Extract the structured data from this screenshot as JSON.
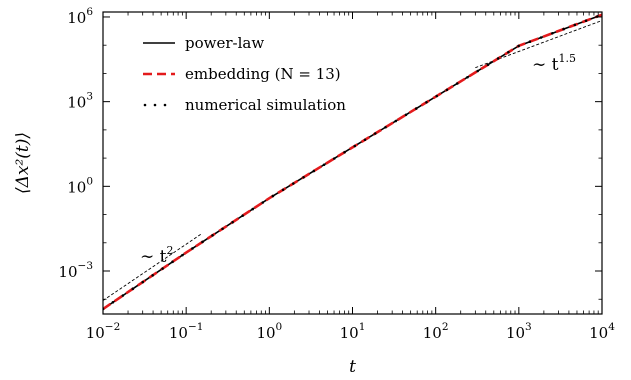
{
  "chart_data": {
    "type": "line",
    "xscale": "log",
    "yscale": "log",
    "xlim": [
      0.01,
      10000
    ],
    "ylim": [
      3e-05,
      1500000
    ],
    "xlabel": "t",
    "ylabel": "⟨Δx²(t)⟩",
    "x_tick_values": [
      0.01,
      0.1,
      1,
      10,
      100,
      1000,
      10000
    ],
    "x_tick_labels": [
      "10^−2",
      "10^−1",
      "10^0",
      "10^1",
      "10^2",
      "10^3",
      "10^4"
    ],
    "y_tick_values": [
      0.001,
      1,
      1000,
      1000000
    ],
    "y_tick_labels": [
      "10^−3",
      "10^0",
      "10^3",
      "10^6"
    ],
    "grid": false,
    "legend_position": "top-left",
    "series": [
      {
        "name": "power-law",
        "color": "#000000",
        "style": "solid",
        "x": [
          0.01,
          0.1,
          1,
          10,
          100,
          1000,
          10000
        ],
        "y": [
          4.5e-05,
          0.0045,
          0.38,
          24,
          1500,
          95000,
          1200000
        ]
      },
      {
        "name": "embedding (N = 13)",
        "color": "#e31a1c",
        "style": "dashed",
        "x": [
          0.01,
          0.1,
          1,
          10,
          100,
          1000,
          10000
        ],
        "y": [
          4.5e-05,
          0.0045,
          0.38,
          24,
          1500,
          95000,
          1200000
        ]
      },
      {
        "name": "numerical simulation",
        "color": "#000000",
        "style": "dotted",
        "x": [
          0.01,
          0.1,
          1,
          10,
          100,
          1000,
          10000
        ],
        "y": [
          4.5e-05,
          0.0045,
          0.38,
          24,
          1500,
          95000,
          1200000
        ]
      }
    ],
    "guide_lines": [
      {
        "label": "∼ t^2",
        "x": [
          0.01,
          0.15
        ],
        "y": [
          9e-05,
          0.02
        ]
      },
      {
        "label": "∼ t^1.5",
        "x": [
          300,
          10000
        ],
        "y": [
          16000,
          750000
        ]
      }
    ]
  }
}
